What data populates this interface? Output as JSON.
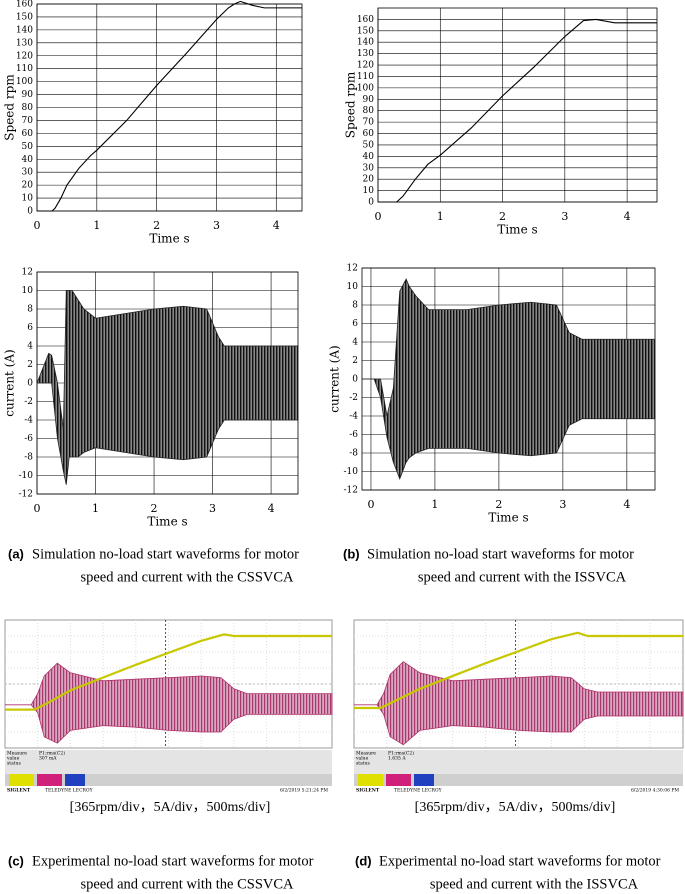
{
  "chart_data": [
    {
      "type": "line",
      "ylabel": "Speed rpm",
      "xlabel": "Time s",
      "color": "#000000",
      "grid": true,
      "x": [
        0,
        0.25,
        0.3,
        0.4,
        0.5,
        0.7,
        0.9,
        1,
        1.5,
        2,
        2.5,
        3,
        3.2,
        3.3,
        3.4,
        3.6,
        3.8,
        4.43
      ],
      "values": [
        0,
        0,
        2,
        10,
        20,
        33,
        43,
        47,
        70,
        97,
        122,
        148,
        157,
        160,
        162,
        159,
        157,
        157
      ],
      "xlim": [
        0,
        4.43
      ],
      "ylim": [
        0,
        160
      ],
      "xticks": [
        0,
        1,
        2,
        3,
        4
      ],
      "yticks": [
        0,
        10,
        20,
        30,
        40,
        50,
        60,
        70,
        80,
        90,
        100,
        110,
        120,
        130,
        140,
        150,
        160
      ]
    },
    {
      "type": "line",
      "ylabel": "Speed rpm",
      "xlabel": "Time s",
      "color": "#000000",
      "grid": true,
      "x": [
        0,
        0.3,
        0.4,
        0.6,
        0.8,
        1,
        1.5,
        2,
        2.5,
        3,
        3.3,
        3.5,
        3.8,
        4.48
      ],
      "values": [
        0,
        0,
        5,
        20,
        33,
        41,
        65,
        93,
        118,
        145,
        159,
        160,
        157,
        157
      ],
      "xlim": [
        0,
        4.48
      ],
      "ylim": [
        0,
        170
      ],
      "xticks": [
        0,
        1,
        2,
        3,
        4
      ],
      "yticks": [
        0,
        10,
        20,
        30,
        40,
        50,
        60,
        70,
        80,
        90,
        100,
        110,
        120,
        130,
        140,
        150,
        160
      ]
    },
    {
      "type": "band",
      "ylabel": "current (A)",
      "xlabel": "Time s",
      "color": "#222222",
      "grid": true,
      "x": [
        0,
        0.2,
        0.25,
        0.35,
        0.45,
        0.5,
        0.55,
        0.6,
        0.7,
        0.8,
        1,
        1.5,
        2,
        2.5,
        2.9,
        3.1,
        3.2,
        4.46
      ],
      "upper": [
        0,
        3.2,
        3,
        0,
        -5,
        10,
        10,
        10,
        9,
        8,
        7,
        7.5,
        8,
        8.3,
        8,
        5,
        4,
        4
      ],
      "lower": [
        0,
        0,
        0,
        -6,
        -9.5,
        -11,
        -8,
        -8,
        -8,
        -7.5,
        -7,
        -7.5,
        -8,
        -8.3,
        -8,
        -5,
        -4,
        -4
      ],
      "xlim": [
        0,
        4.46
      ],
      "ylim": [
        -12,
        12
      ],
      "xticks": [
        0,
        1,
        2,
        3,
        4
      ],
      "yticks": [
        -12,
        -10,
        -8,
        -6,
        -4,
        -2,
        0,
        2,
        4,
        6,
        8,
        10,
        12
      ]
    },
    {
      "type": "band",
      "ylabel": "current (A)",
      "xlabel": "Time s",
      "color": "#222222",
      "grid": true,
      "x": [
        -0.14,
        0.05,
        0.15,
        0.25,
        0.35,
        0.45,
        0.55,
        0.6,
        0.7,
        0.9,
        1.5,
        2,
        2.5,
        2.9,
        3.1,
        3.3,
        4.44
      ],
      "upper": [
        0,
        0,
        0,
        -4,
        -1,
        9.5,
        10.8,
        10,
        9,
        7.5,
        7.5,
        8,
        8.3,
        8,
        5,
        4.3,
        4.3
      ],
      "lower": [
        0,
        0,
        -2,
        -6.3,
        -9,
        -10.8,
        -9,
        -8.5,
        -8,
        -7.5,
        -7.5,
        -8,
        -8.3,
        -8,
        -5,
        -4.3,
        -4.3
      ],
      "xlim": [
        -0.14,
        4.44
      ],
      "ylim": [
        -12,
        12
      ],
      "xticks": [
        0,
        1,
        2,
        3,
        4
      ],
      "yticks": [
        -12,
        -10,
        -8,
        -6,
        -4,
        -2,
        0,
        2,
        4,
        6,
        8,
        10,
        12
      ]
    },
    {
      "type": "scope",
      "xlim": [
        0,
        10
      ],
      "ylim": [
        -4,
        4
      ],
      "speed": {
        "color": "#c8c800",
        "x": [
          0,
          0.9,
          1.2,
          2,
          4,
          6,
          6.7,
          7,
          10
        ],
        "values": [
          -1.6,
          -1.6,
          -1.3,
          -0.4,
          1.2,
          2.7,
          3.1,
          3.0,
          3.0
        ]
      },
      "current": {
        "color": "#b0306a",
        "x": [
          0,
          0.8,
          1.0,
          1.2,
          1.6,
          2.0,
          3,
          4,
          5,
          6,
          6.6,
          7,
          7.4,
          10
        ],
        "upper": [
          -1.3,
          -1.3,
          -0.6,
          0.5,
          1.3,
          0.7,
          0.2,
          0.3,
          0.4,
          0.5,
          0.4,
          -0.3,
          -0.6,
          -0.6
        ],
        "lower": [
          -1.3,
          -1.3,
          -1.8,
          -3.3,
          -3.7,
          -2.9,
          -2.6,
          -2.7,
          -2.9,
          -3,
          -3,
          -2.2,
          -1.9,
          -1.9
        ]
      },
      "measure_label": "Measure",
      "measure_param": "P1:rms(C2)",
      "value_label": "value",
      "value": "307 mA",
      "status_label": "status",
      "brand": "SIGLENT",
      "brand2": "TELEDYNE LECROY",
      "timestamp": "6/2/2019 5:21:24 PM"
    },
    {
      "type": "scope",
      "xlim": [
        0,
        10
      ],
      "ylim": [
        -4,
        4
      ],
      "speed": {
        "color": "#c8c800",
        "x": [
          0,
          0.8,
          1.1,
          2,
          4,
          6,
          6.8,
          7.1,
          10
        ],
        "values": [
          -1.5,
          -1.5,
          -1.2,
          -0.3,
          1.3,
          2.8,
          3.2,
          3.0,
          3.0
        ]
      },
      "current": {
        "color": "#b0306a",
        "x": [
          0,
          0.7,
          0.9,
          1.1,
          1.5,
          2.0,
          3,
          4,
          5,
          6,
          6.6,
          7,
          7.4,
          10
        ],
        "upper": [
          -1.3,
          -1.3,
          -0.6,
          0.6,
          1.4,
          0.7,
          0.2,
          0.3,
          0.4,
          0.5,
          0.4,
          -0.3,
          -0.5,
          -0.5
        ],
        "lower": [
          -1.3,
          -1.3,
          -1.9,
          -3.3,
          -3.8,
          -2.9,
          -2.6,
          -2.7,
          -2.9,
          -3,
          -3,
          -2.2,
          -2.0,
          -2.0
        ]
      },
      "measure_label": "Measure",
      "measure_param": "P1:rms(C2)",
      "value_label": "value",
      "value": "1.635 A",
      "status_label": "status",
      "brand": "SIGLENT",
      "brand2": "TELEDYNE LECROY",
      "timestamp": "6/2/2019 4:30:06 PM"
    }
  ],
  "scale_notes": [
    "[365rpm/div，5A/div，500ms/div]",
    "[365rpm/div，5A/div，500ms/div]"
  ],
  "captions": [
    {
      "label": "(a)",
      "lines": [
        "Simulation no-load start waveforms for motor",
        "speed and current with the CSSVCA"
      ]
    },
    {
      "label": "(b)",
      "lines": [
        "Simulation no-load start waveforms for motor",
        "speed and current with the ISSVCA"
      ]
    },
    {
      "label": "(c)",
      "lines": [
        "Experimental no-load start waveforms for motor",
        "speed and current with the CSSVCA"
      ]
    },
    {
      "label": "(d)",
      "lines": [
        "Experimental no-load start waveforms for motor",
        "speed and current with the ISSVCA"
      ]
    }
  ]
}
